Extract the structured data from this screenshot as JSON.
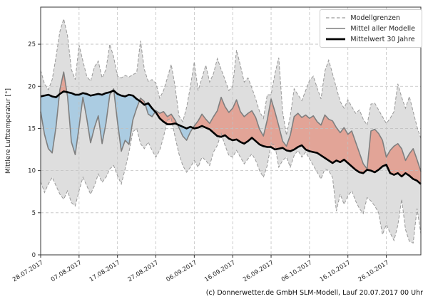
{
  "figure": {
    "caption": "(c) Donnerwetter.de GmbH SLM-Modell, Lauf 20.07.2017 00 Uhr"
  },
  "legend": {
    "items": [
      {
        "label": "Modellgrenzen",
        "style": "dashed-gray"
      },
      {
        "label": "Mittel aller Modelle",
        "style": "solid-gray"
      },
      {
        "label": "Mittelwert 30 Jahre",
        "style": "thick-black"
      }
    ]
  },
  "chart_data": {
    "type": "line",
    "title": "",
    "xlabel": "",
    "ylabel": "Mittlere Lufttemperatur [°]",
    "grid": true,
    "legend_position": "upper right",
    "ylim": [
      0,
      29.4
    ],
    "yticks": [
      0,
      5,
      10,
      15,
      20,
      25
    ],
    "x_tick_labels": [
      "28.07.2017",
      "07.08.2017",
      "17.08.2017",
      "27.08.2017",
      "06.09.2017",
      "16.09.2017",
      "26.09.2017",
      "06.10.2017",
      "16.10.2017",
      "26.10.2017"
    ],
    "x_tick_positions": [
      0,
      10,
      20,
      30,
      40,
      50,
      60,
      70,
      80,
      90
    ],
    "x_unit": "Tag (täglich, 28.07.2017 bis 04.11.2017)",
    "series": [
      {
        "key": "upper",
        "name": "Modellgrenzen (obere Grenze)",
        "values": [
          21.9,
          20.3,
          19.6,
          20.8,
          23.5,
          26.5,
          28.0,
          26.0,
          22.0,
          20.8,
          24.9,
          23.0,
          21.2,
          20.6,
          22.3,
          23.0,
          21.0,
          22.0,
          25.0,
          23.5,
          21.2,
          21.0,
          21.3,
          21.1,
          21.4,
          21.6,
          25.4,
          22.0,
          20.6,
          20.8,
          20.4,
          18.6,
          19.5,
          21.0,
          22.6,
          20.0,
          16.5,
          15.8,
          17.5,
          20.0,
          22.9,
          19.5,
          21.0,
          22.5,
          20.5,
          21.5,
          23.3,
          22.0,
          20.8,
          19.5,
          20.0,
          24.3,
          22.5,
          20.5,
          21.0,
          19.8,
          18.5,
          17.0,
          16.2,
          19.0,
          19.0,
          21.5,
          23.4,
          17.0,
          14.2,
          16.5,
          19.7,
          19.0,
          18.3,
          19.5,
          20.7,
          21.2,
          19.8,
          18.5,
          21.8,
          23.1,
          21.5,
          19.8,
          18.2,
          17.4,
          18.4,
          17.6,
          16.8,
          17.2,
          16.1,
          15.4,
          17.9,
          18.0,
          17.2,
          16.4,
          15.6,
          16.2,
          17.0,
          20.3,
          18.7,
          17.4,
          18.8,
          17.0,
          15.2,
          13.8
        ]
      },
      {
        "key": "lower",
        "name": "Modellgrenzen (untere Grenze)",
        "values": [
          8.7,
          7.4,
          8.4,
          9.2,
          8.2,
          7.2,
          6.6,
          7.6,
          6.2,
          5.8,
          7.6,
          9.2,
          8.2,
          7.2,
          8.2,
          9.6,
          8.6,
          9.2,
          10.2,
          10.6,
          9.4,
          8.4,
          10.2,
          12.2,
          14.6,
          15.0,
          13.2,
          12.6,
          13.4,
          12.4,
          11.6,
          12.4,
          14.0,
          16.0,
          16.2,
          14.0,
          12.0,
          10.6,
          9.8,
          10.4,
          11.2,
          10.4,
          11.6,
          11.2,
          10.6,
          12.2,
          13.0,
          14.4,
          13.0,
          11.8,
          11.6,
          12.4,
          11.6,
          10.8,
          11.4,
          12.0,
          11.2,
          10.0,
          9.2,
          10.6,
          13.2,
          13.0,
          10.4,
          11.2,
          11.6,
          10.4,
          11.8,
          12.4,
          11.6,
          12.2,
          11.4,
          10.6,
          9.8,
          9.0,
          10.2,
          10.0,
          9.2,
          5.2,
          7.2,
          6.0,
          7.0,
          7.6,
          6.4,
          5.5,
          4.9,
          6.8,
          6.4,
          5.8,
          5.0,
          2.4,
          3.6,
          2.6,
          1.7,
          3.5,
          6.6,
          3.0,
          1.6,
          1.4,
          5.5,
          2.5
        ]
      },
      {
        "key": "model_mean",
        "name": "Mittel aller Modelle",
        "values": [
          17.0,
          14.3,
          12.6,
          12.1,
          15.2,
          19.6,
          21.7,
          18.8,
          13.4,
          11.9,
          15.2,
          18.7,
          16.2,
          13.3,
          15.1,
          16.5,
          13.2,
          15.6,
          19.0,
          19.7,
          15.8,
          12.3,
          13.6,
          13.1,
          16.0,
          17.4,
          18.6,
          18.2,
          16.7,
          16.4,
          17.1,
          16.8,
          17.0,
          16.4,
          16.7,
          16.0,
          15.1,
          14.1,
          13.6,
          14.6,
          15.3,
          15.9,
          16.7,
          16.1,
          15.6,
          16.4,
          17.1,
          18.7,
          17.6,
          16.9,
          17.4,
          18.4,
          17.0,
          16.4,
          16.8,
          17.1,
          16.3,
          14.9,
          14.1,
          16.0,
          18.5,
          17.0,
          15.3,
          13.5,
          12.9,
          14.2,
          16.4,
          16.8,
          16.3,
          16.6,
          16.2,
          16.5,
          15.8,
          15.4,
          16.6,
          16.1,
          15.9,
          15.1,
          14.5,
          15.1,
          14.3,
          14.7,
          13.4,
          12.1,
          10.8,
          10.2,
          14.7,
          14.9,
          14.4,
          13.6,
          11.6,
          12.4,
          12.9,
          13.2,
          12.6,
          11.2,
          12.0,
          12.6,
          11.3,
          9.9
        ]
      },
      {
        "key": "mean_30y",
        "name": "Mittelwert 30 Jahre",
        "values": [
          18.8,
          18.9,
          19.0,
          18.8,
          18.7,
          19.1,
          19.4,
          19.3,
          19.2,
          19.0,
          19.0,
          19.2,
          19.1,
          18.9,
          19.0,
          19.1,
          19.0,
          19.2,
          19.3,
          19.5,
          19.1,
          18.9,
          18.8,
          19.0,
          18.9,
          18.5,
          18.2,
          17.8,
          18.0,
          17.4,
          16.9,
          16.2,
          15.8,
          15.5,
          15.5,
          15.6,
          15.4,
          15.2,
          15.0,
          15.2,
          15.0,
          15.1,
          15.3,
          15.1,
          14.9,
          14.5,
          14.1,
          14.0,
          14.2,
          13.8,
          13.6,
          13.7,
          13.4,
          13.2,
          13.5,
          13.9,
          13.5,
          13.1,
          12.9,
          12.8,
          12.8,
          12.5,
          12.6,
          12.7,
          12.4,
          12.3,
          12.5,
          12.8,
          13.0,
          12.5,
          12.3,
          12.2,
          12.1,
          11.8,
          11.5,
          11.2,
          10.9,
          11.2,
          11.0,
          11.3,
          10.9,
          10.5,
          10.1,
          9.8,
          9.7,
          10.1,
          10.0,
          9.8,
          10.1,
          10.5,
          10.7,
          9.7,
          9.5,
          9.7,
          9.3,
          9.7,
          9.4,
          9.0,
          8.8,
          8.4
        ]
      }
    ],
    "colors": {
      "envelope_fill": "#dcdcdc",
      "bound_line": "#999999",
      "model_mean_line": "#7f7f7f",
      "mean30_line": "#000000",
      "warm_fill": "rgba(230,105,80,0.5)",
      "cold_fill": "rgba(120,185,230,0.5)",
      "grid": "#c0c0c0",
      "spine": "#333333"
    }
  }
}
